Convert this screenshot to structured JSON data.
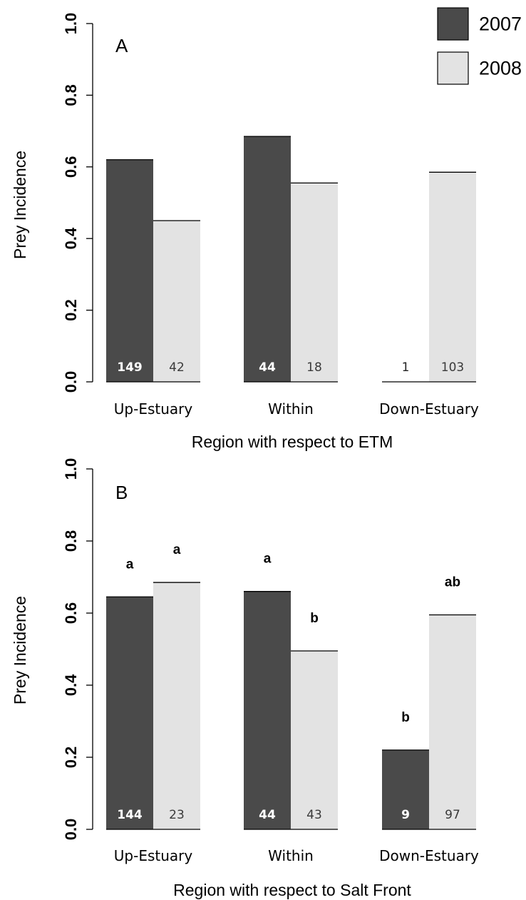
{
  "legend": {
    "items": [
      {
        "label": "2007",
        "color": "#4a4a4a"
      },
      {
        "label": "2008",
        "color": "#e3e3e3"
      }
    ],
    "placement": "top-right"
  },
  "chart_data": [
    {
      "type": "bar",
      "panel_label": "A",
      "categories": [
        "Up-Estuary",
        "Within",
        "Down-Estuary"
      ],
      "series": [
        {
          "name": "2007",
          "values": [
            0.62,
            0.685,
            0.0
          ],
          "n": [
            "149",
            "44",
            "1"
          ]
        },
        {
          "name": "2008",
          "values": [
            0.45,
            0.555,
            0.585
          ],
          "n": [
            "42",
            "18",
            "103"
          ]
        }
      ],
      "significance": null,
      "xlabel": "Region with respect to ETM",
      "ylabel": "Prey Incidence",
      "ylim": [
        0,
        1
      ],
      "yticks": [
        "0.0",
        "0.2",
        "0.4",
        "0.6",
        "0.8",
        "1.0"
      ],
      "grid": false
    },
    {
      "type": "bar",
      "panel_label": "B",
      "categories": [
        "Up-Estuary",
        "Within",
        "Down-Estuary"
      ],
      "series": [
        {
          "name": "2007",
          "values": [
            0.645,
            0.66,
            0.22
          ],
          "n": [
            "144",
            "44",
            "9"
          ],
          "significance": [
            "a",
            "a",
            "b"
          ]
        },
        {
          "name": "2008",
          "values": [
            0.685,
            0.495,
            0.595
          ],
          "n": [
            "23",
            "43",
            "97"
          ],
          "significance": [
            "a",
            "b",
            "ab"
          ]
        }
      ],
      "xlabel": "Region with respect to Salt Front",
      "ylabel": "Prey Incidence",
      "ylim": [
        0,
        1
      ],
      "yticks": [
        "0.0",
        "0.2",
        "0.4",
        "0.6",
        "0.8",
        "1.0"
      ],
      "grid": false
    }
  ]
}
